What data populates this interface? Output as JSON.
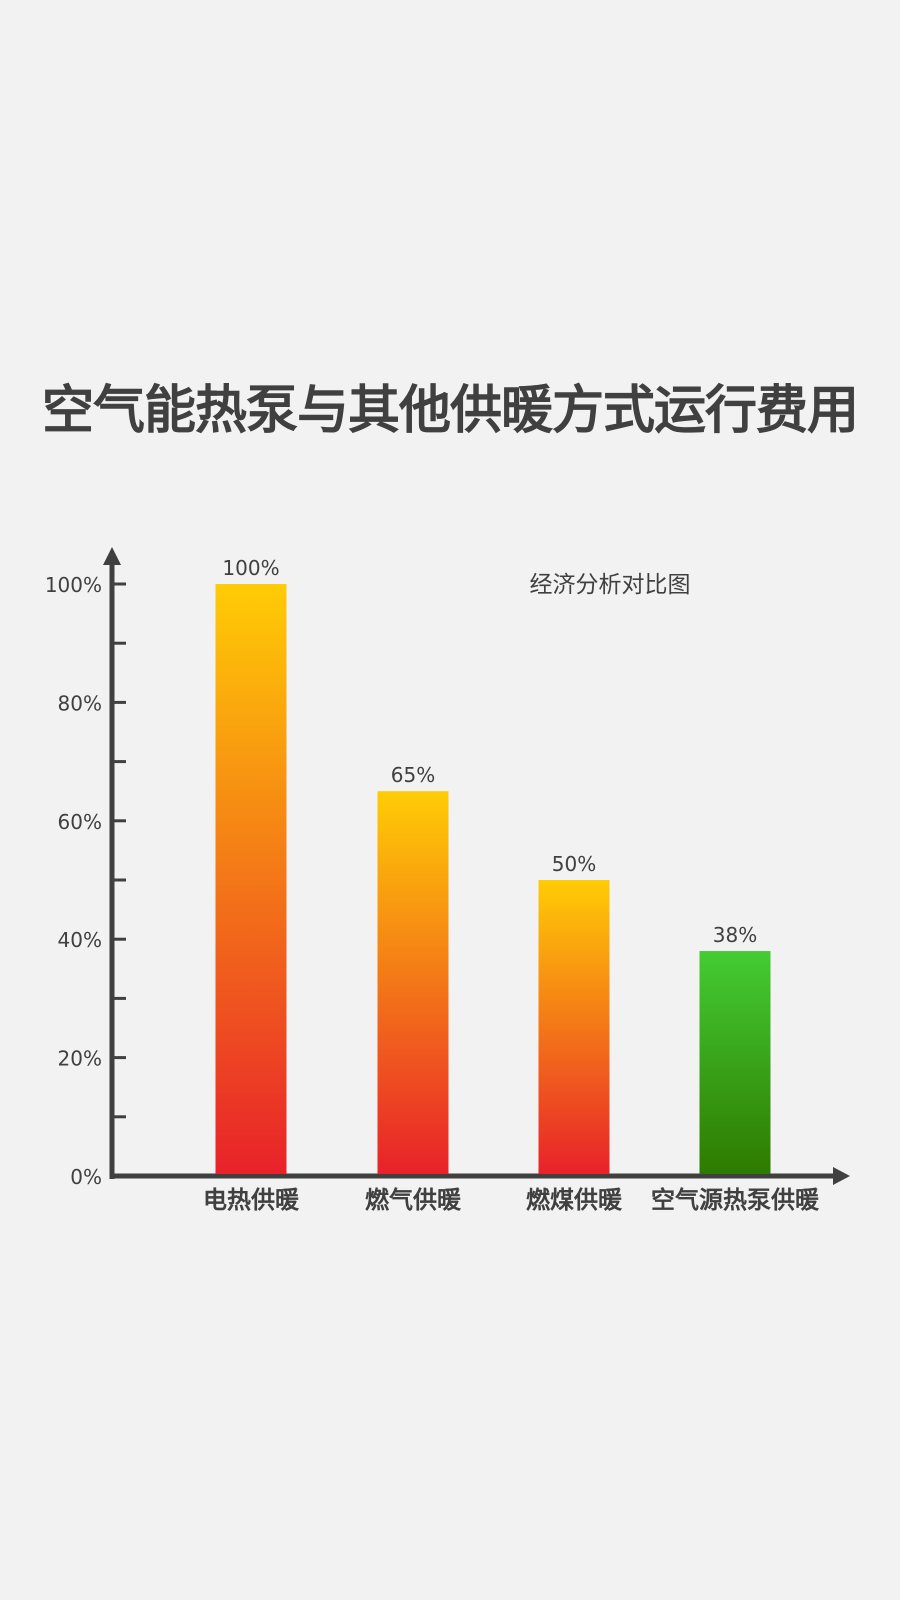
{
  "title": "空气能热泵与其他供暖方式运行费用",
  "chart_data": {
    "type": "bar",
    "title": "空气能热泵与其他供暖方式运行费用",
    "subtitle": "经济分析对比图",
    "categories": [
      "电热供暖",
      "燃气供暖",
      "燃煤供暖",
      "空气源热泵供暖"
    ],
    "values": [
      100,
      65,
      50,
      38
    ],
    "data_labels": [
      "100%",
      "65%",
      "50%",
      "38%"
    ],
    "ylim": [
      0,
      100
    ],
    "yticks": [
      0,
      20,
      40,
      60,
      80,
      100
    ],
    "ytick_labels": [
      "0%",
      "20%",
      "40%",
      "60%",
      "80%",
      "100%"
    ],
    "minor_ticks": [
      10,
      30,
      50,
      70,
      90
    ],
    "grid": false,
    "colors": {
      "bar_gradient_top": "#ffcc05",
      "bar_gradient_bottom": "#e8222a",
      "highlight_gradient_top": "#44cc33",
      "highlight_gradient_bottom": "#2e7a00",
      "axis": "#404040",
      "background": "#f2f2f2"
    }
  }
}
